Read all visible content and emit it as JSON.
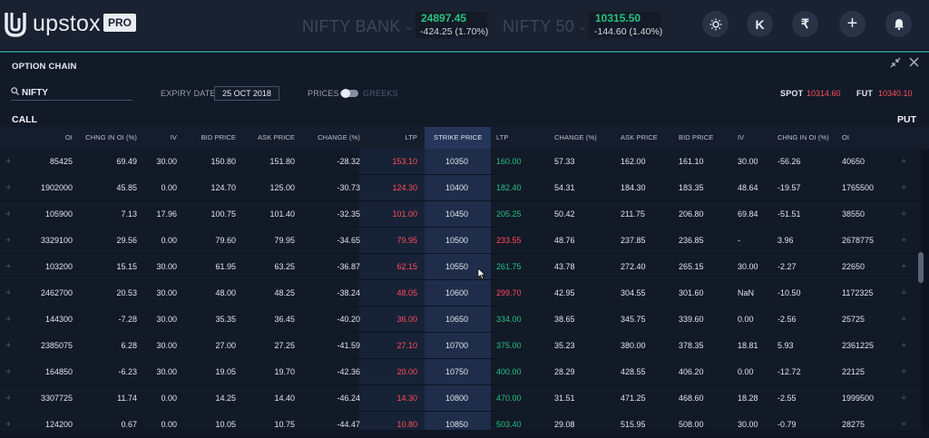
{
  "app": {
    "brand": "upstox",
    "badge": "PRO"
  },
  "tickers": [
    {
      "name": "NIFTY BANK",
      "price": "24897.45",
      "change": "-424.25 (1.70%)"
    },
    {
      "name": "NIFTY 50",
      "price": "10315.50",
      "change": "-144.60 (1.40%)"
    }
  ],
  "topbar": {
    "avatar_letter": "K",
    "rupee_symbol": "₹",
    "plus_symbol": "+"
  },
  "panel": {
    "title": "OPTION CHAIN"
  },
  "search": {
    "value": "NIFTY"
  },
  "expiry": {
    "label": "EXPIRY DATE",
    "value": "25 OCT 2018"
  },
  "view_toggle": {
    "prices": "PRICES",
    "greeks": "GREEKS"
  },
  "spot": {
    "label": "SPOT",
    "value": "10314.60"
  },
  "fut": {
    "label": "FUT",
    "value": "10340.10"
  },
  "sides": {
    "call": "CALL",
    "put": "PUT"
  },
  "columns": {
    "call": [
      "OI",
      "CHNG IN OI (%)",
      "IV",
      "BID PRICE",
      "ASK PRICE",
      "CHANGE (%)",
      "LTP"
    ],
    "strike": "STRIKE PRICE",
    "put": [
      "LTP",
      "CHANGE (%)",
      "ASK PRICE",
      "BID PRICE",
      "IV",
      "CHNG IN OI (%)",
      "OI"
    ]
  },
  "rows": [
    {
      "call": [
        "85425",
        "69.49",
        "30.00",
        "150.80",
        "151.80",
        "-28.32",
        "153.10"
      ],
      "strike": "10350",
      "put": [
        "160.00",
        "57.33",
        "162.00",
        "161.10",
        "30.00",
        "-56.26",
        "40650"
      ]
    },
    {
      "call": [
        "1902000",
        "45.85",
        "0.00",
        "124.70",
        "125.00",
        "-30.73",
        "124.30"
      ],
      "strike": "10400",
      "put": [
        "182.40",
        "54.31",
        "184.30",
        "183.35",
        "48.64",
        "-19.57",
        "1765500"
      ]
    },
    {
      "call": [
        "105900",
        "7.13",
        "17.96",
        "100.75",
        "101.40",
        "-32.35",
        "101.00"
      ],
      "strike": "10450",
      "put": [
        "205.25",
        "50.42",
        "211.75",
        "206.80",
        "69.84",
        "-51.51",
        "38550"
      ]
    },
    {
      "call": [
        "3329100",
        "29.56",
        "0.00",
        "79.60",
        "79.95",
        "-34.65",
        "79.95"
      ],
      "strike": "10500",
      "put": [
        "233.55",
        "48.76",
        "237.85",
        "236.85",
        "-",
        "3.96",
        "2678775"
      ]
    },
    {
      "call": [
        "103200",
        "15.15",
        "30.00",
        "61.95",
        "63.25",
        "-36.87",
        "62.15"
      ],
      "strike": "10550",
      "put": [
        "261.75",
        "43.78",
        "272.40",
        "265.15",
        "30.00",
        "-2.27",
        "22650"
      ]
    },
    {
      "call": [
        "2462700",
        "20.53",
        "30.00",
        "48.00",
        "48.25",
        "-38.24",
        "48.05"
      ],
      "strike": "10600",
      "put": [
        "299.70",
        "42.95",
        "304.55",
        "301.60",
        "NaN",
        "-10.50",
        "1172325"
      ]
    },
    {
      "call": [
        "144300",
        "-7.28",
        "30.00",
        "35.35",
        "36.45",
        "-40.20",
        "36.00"
      ],
      "strike": "10650",
      "put": [
        "334.00",
        "38.65",
        "345.75",
        "339.60",
        "0.00",
        "-2.56",
        "25725"
      ]
    },
    {
      "call": [
        "2385075",
        "6.28",
        "30.00",
        "27.00",
        "27.25",
        "-41.59",
        "27.10"
      ],
      "strike": "10700",
      "put": [
        "375.00",
        "35.23",
        "380.00",
        "378.35",
        "18.81",
        "5.93",
        "2361225"
      ]
    },
    {
      "call": [
        "164850",
        "-6.23",
        "30.00",
        "19.05",
        "19.70",
        "-42.36",
        "20.00"
      ],
      "strike": "10750",
      "put": [
        "400.00",
        "28.29",
        "428.55",
        "406.20",
        "0.00",
        "-12.72",
        "22125"
      ]
    },
    {
      "call": [
        "3307725",
        "11.74",
        "0.00",
        "14.25",
        "14.40",
        "-46.24",
        "14.30"
      ],
      "strike": "10800",
      "put": [
        "470.00",
        "31.51",
        "471.25",
        "468.60",
        "18.28",
        "-2.55",
        "1999500"
      ]
    },
    {
      "call": [
        "124200",
        "0.67",
        "0.00",
        "10.05",
        "10.75",
        "-44.47",
        "10.80"
      ],
      "strike": "10850",
      "put": [
        "503.40",
        "29.08",
        "515.95",
        "508.00",
        "30.00",
        "-0.79",
        "28275"
      ]
    }
  ],
  "put_ltp_colors": [
    "green",
    "green",
    "green",
    "red",
    "green",
    "red",
    "green",
    "green",
    "green",
    "green",
    "green"
  ],
  "colors": {
    "accent_teal": "#2d7d7a",
    "up": "#26c281",
    "down": "#ff4c59",
    "strike_column": "#1f2d4a"
  }
}
